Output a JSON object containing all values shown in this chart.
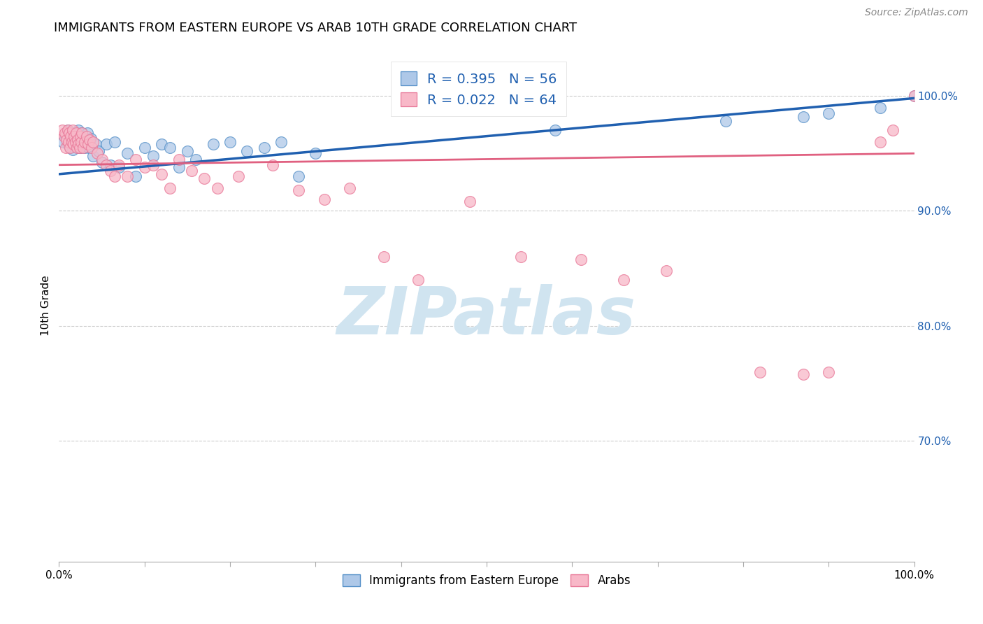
{
  "title": "IMMIGRANTS FROM EASTERN EUROPE VS ARAB 10TH GRADE CORRELATION CHART",
  "source": "Source: ZipAtlas.com",
  "ylabel": "10th Grade",
  "y_ticks": [
    0.7,
    0.8,
    0.9,
    1.0
  ],
  "y_tick_labels": [
    "70.0%",
    "80.0%",
    "90.0%",
    "100.0%"
  ],
  "xlim": [
    0.0,
    1.0
  ],
  "ylim": [
    0.595,
    1.04
  ],
  "legend_blue_R": "R = 0.395",
  "legend_blue_N": "N = 56",
  "legend_pink_R": "R = 0.022",
  "legend_pink_N": "N = 64",
  "blue_fill": "#aec8e8",
  "pink_fill": "#f8b8c8",
  "blue_edge": "#5590c8",
  "pink_edge": "#e87898",
  "blue_line_color": "#2060b0",
  "pink_line_color": "#e06080",
  "legend_text_color": "#2060b0",
  "watermark_text": "ZIPatlas",
  "watermark_color": "#d0e4f0",
  "blue_scatter_x": [
    0.005,
    0.008,
    0.01,
    0.01,
    0.012,
    0.013,
    0.014,
    0.015,
    0.016,
    0.017,
    0.018,
    0.019,
    0.02,
    0.021,
    0.022,
    0.023,
    0.024,
    0.025,
    0.026,
    0.027,
    0.028,
    0.03,
    0.031,
    0.033,
    0.035,
    0.037,
    0.04,
    0.043,
    0.046,
    0.05,
    0.055,
    0.06,
    0.065,
    0.07,
    0.08,
    0.09,
    0.1,
    0.11,
    0.12,
    0.13,
    0.14,
    0.15,
    0.16,
    0.18,
    0.2,
    0.22,
    0.24,
    0.26,
    0.28,
    0.3,
    0.58,
    0.78,
    0.87,
    0.9,
    0.96,
    1.0
  ],
  "blue_scatter_y": [
    0.96,
    0.965,
    0.958,
    0.97,
    0.962,
    0.955,
    0.968,
    0.96,
    0.953,
    0.965,
    0.958,
    0.962,
    0.96,
    0.968,
    0.955,
    0.97,
    0.96,
    0.955,
    0.965,
    0.968,
    0.958,
    0.955,
    0.96,
    0.968,
    0.955,
    0.963,
    0.948,
    0.958,
    0.952,
    0.942,
    0.958,
    0.94,
    0.96,
    0.938,
    0.95,
    0.93,
    0.955,
    0.948,
    0.958,
    0.955,
    0.938,
    0.952,
    0.945,
    0.958,
    0.96,
    0.952,
    0.955,
    0.96,
    0.93,
    0.95,
    0.97,
    0.978,
    0.982,
    0.985,
    0.99,
    1.0
  ],
  "pink_scatter_x": [
    0.004,
    0.006,
    0.007,
    0.008,
    0.009,
    0.01,
    0.011,
    0.012,
    0.013,
    0.014,
    0.015,
    0.016,
    0.017,
    0.018,
    0.019,
    0.02,
    0.021,
    0.022,
    0.023,
    0.024,
    0.025,
    0.026,
    0.027,
    0.028,
    0.03,
    0.032,
    0.034,
    0.036,
    0.038,
    0.04,
    0.045,
    0.05,
    0.055,
    0.06,
    0.065,
    0.07,
    0.08,
    0.09,
    0.1,
    0.11,
    0.12,
    0.13,
    0.14,
    0.155,
    0.17,
    0.185,
    0.21,
    0.25,
    0.28,
    0.31,
    0.34,
    0.38,
    0.42,
    0.48,
    0.54,
    0.61,
    0.66,
    0.71,
    0.82,
    0.87,
    0.9,
    0.96,
    0.975,
    1.0
  ],
  "pink_scatter_y": [
    0.97,
    0.965,
    0.968,
    0.955,
    0.962,
    0.97,
    0.96,
    0.968,
    0.955,
    0.965,
    0.96,
    0.97,
    0.958,
    0.965,
    0.96,
    0.968,
    0.955,
    0.962,
    0.958,
    0.955,
    0.965,
    0.96,
    0.968,
    0.955,
    0.96,
    0.965,
    0.958,
    0.962,
    0.955,
    0.96,
    0.95,
    0.945,
    0.94,
    0.935,
    0.93,
    0.94,
    0.93,
    0.945,
    0.938,
    0.94,
    0.932,
    0.92,
    0.945,
    0.935,
    0.928,
    0.92,
    0.93,
    0.94,
    0.918,
    0.91,
    0.92,
    0.86,
    0.84,
    0.908,
    0.86,
    0.858,
    0.84,
    0.848,
    0.76,
    0.758,
    0.76,
    0.96,
    0.97,
    1.0
  ],
  "blue_trend_x0": 0.0,
  "blue_trend_y0": 0.932,
  "blue_trend_x1": 1.0,
  "blue_trend_y1": 0.998,
  "pink_trend_x0": 0.0,
  "pink_trend_y0": 0.94,
  "pink_trend_x1": 1.0,
  "pink_trend_y1": 0.95,
  "title_fontsize": 13,
  "axis_label_fontsize": 11,
  "tick_fontsize": 11,
  "source_fontsize": 10,
  "marker_size": 130
}
